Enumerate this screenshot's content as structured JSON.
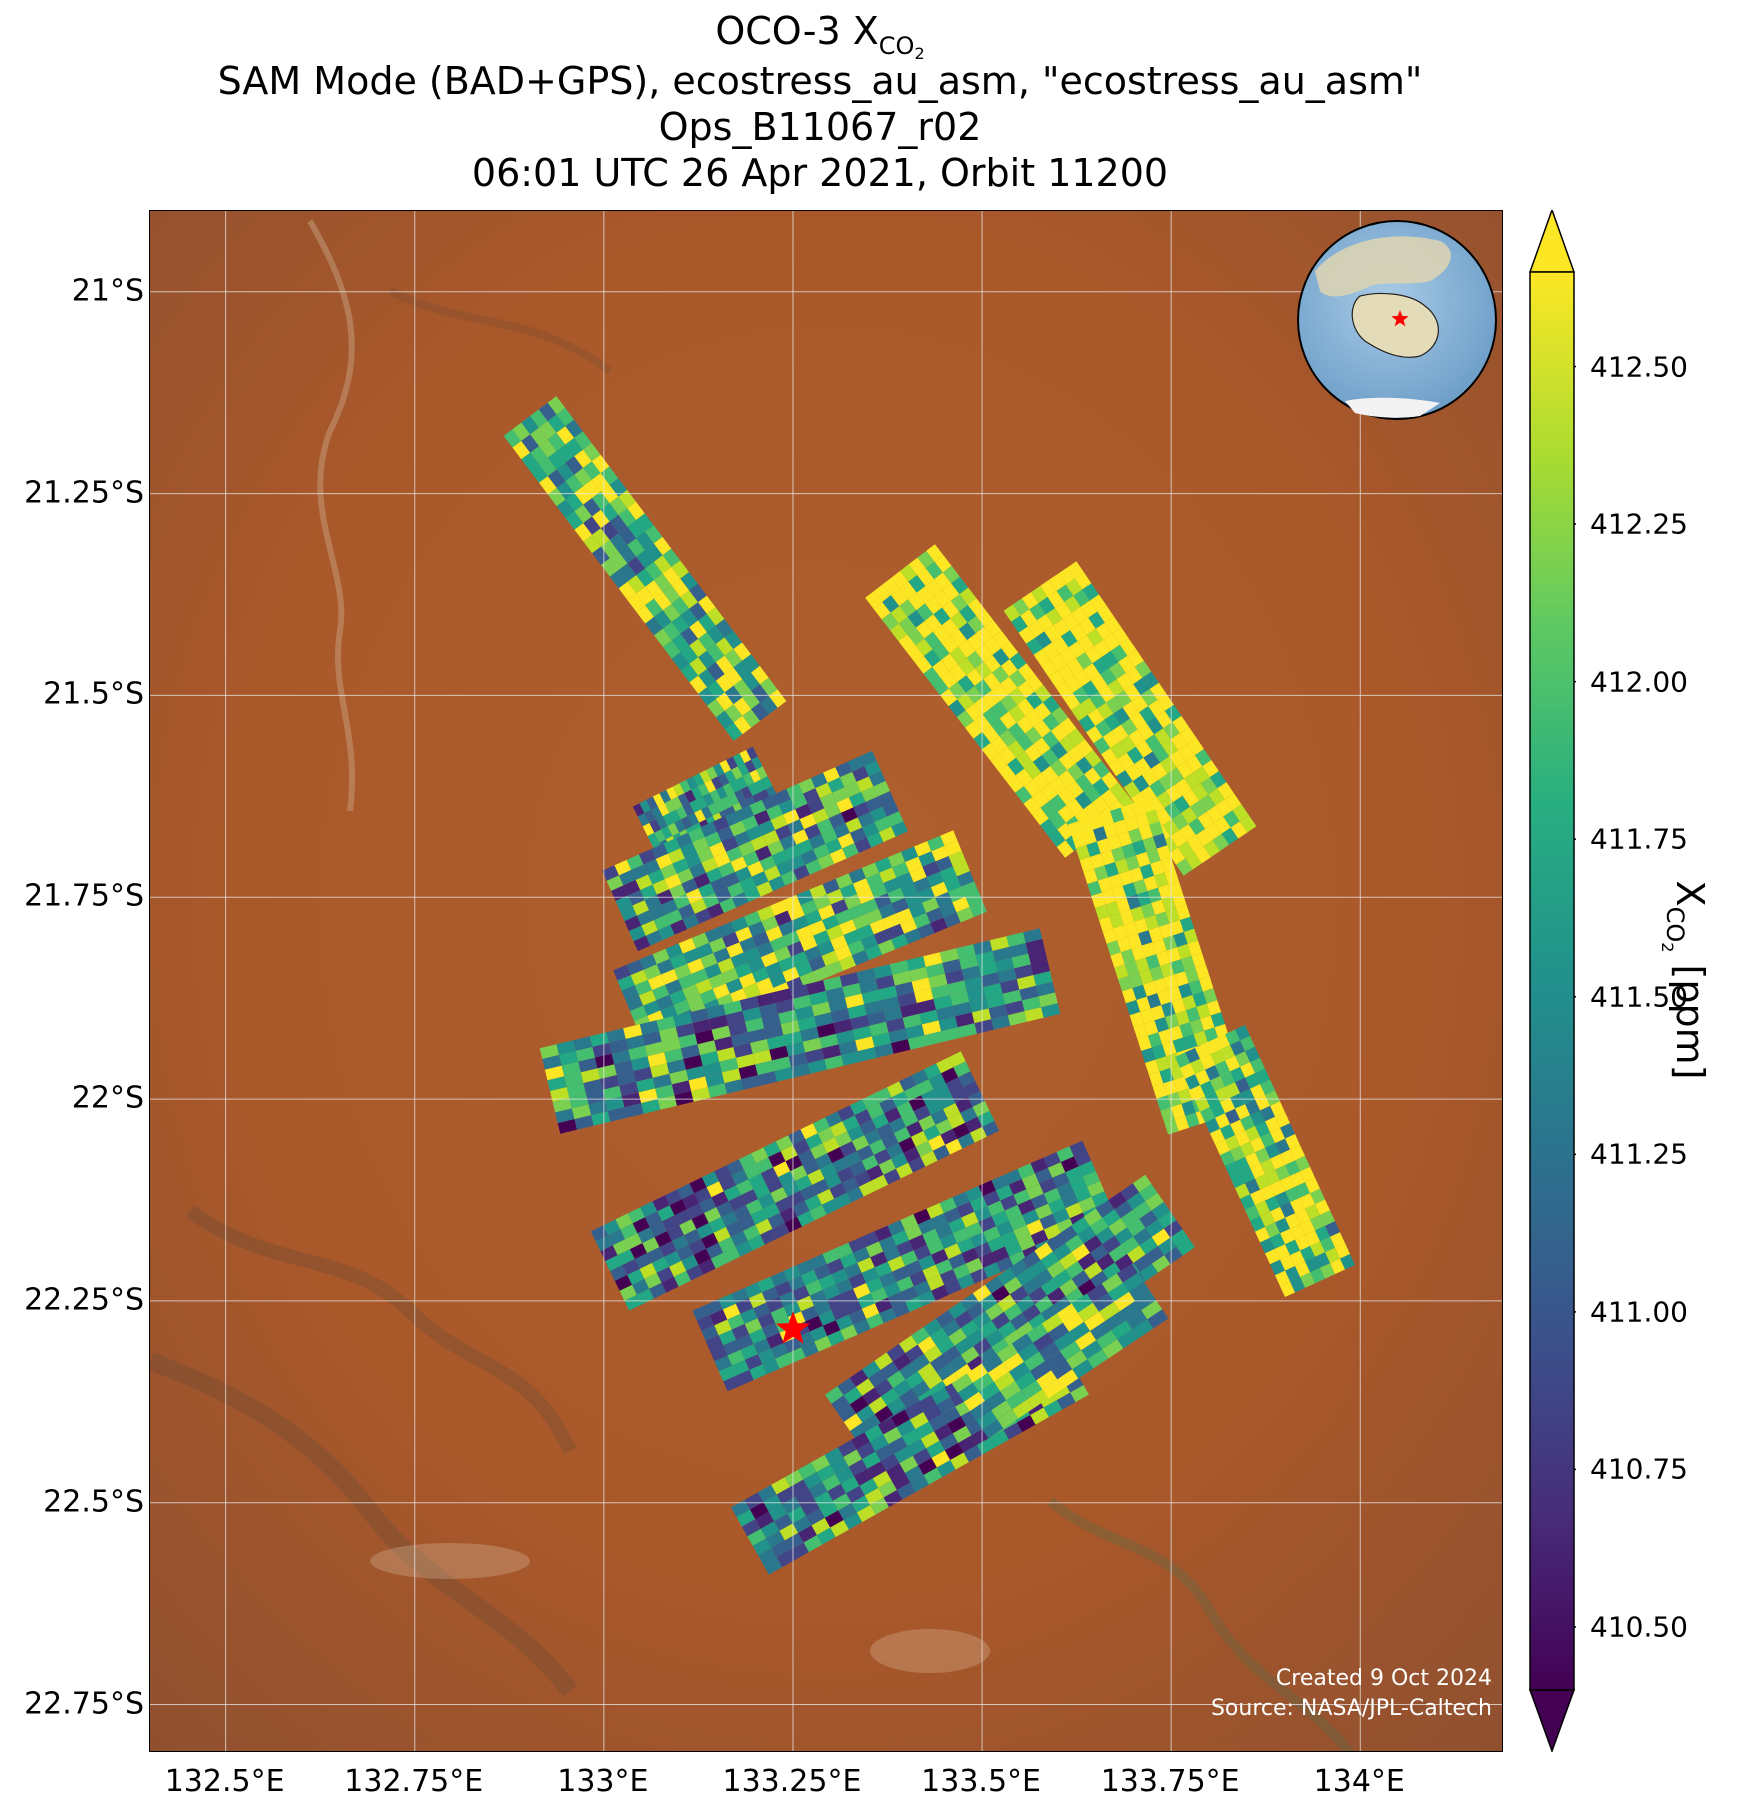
{
  "title": {
    "line1_prefix": "OCO-3 X",
    "line1_subscript": "CO",
    "line1_subsub": "2",
    "line2": "SAM Mode (BAD+GPS), ecostress_au_asm, \"ecostress_au_asm\"",
    "line3": "Ops_B11067_r02",
    "line4": "06:01 UTC 26 Apr 2021, Orbit 11200"
  },
  "map": {
    "lat_ticks": [
      "21°S",
      "21.25°S",
      "21.5°S",
      "21.75°S",
      "22°S",
      "22.25°S",
      "22.5°S",
      "22.75°S"
    ],
    "lat_values": [
      -21.0,
      -21.25,
      -21.5,
      -21.75,
      -22.0,
      -22.25,
      -22.5,
      -22.75
    ],
    "lon_ticks": [
      "132.5°E",
      "132.75°E",
      "133°E",
      "133.25°E",
      "133.5°E",
      "133.75°E",
      "134°E"
    ],
    "lon_values": [
      132.5,
      132.75,
      133.0,
      133.25,
      133.5,
      133.75,
      134.0
    ],
    "lon_range": [
      132.4,
      134.19
    ],
    "lat_range": [
      -22.81,
      -20.9
    ],
    "target_marker": {
      "lon": 133.25,
      "lat": -22.285,
      "color": "#ff0000",
      "symbol": "star"
    },
    "background": "satellite imagery (red desert terrain)",
    "inset_globe": {
      "description": "orthographic globe centered on Australia",
      "marker_color": "#ff0000"
    },
    "credits": [
      "Created 9 Oct 2024",
      "Source: NASA/JPL-Caltech"
    ]
  },
  "colorbar": {
    "label_prefix": "X",
    "label_subscript": "CO",
    "label_subsub": "2",
    "label_suffix": " [ppm]",
    "ticks": [
      "412.50",
      "412.25",
      "412.00",
      "411.75",
      "411.50",
      "411.25",
      "411.00",
      "410.75",
      "410.50"
    ],
    "tick_values": [
      412.5,
      412.25,
      412.0,
      411.75,
      411.5,
      411.25,
      411.0,
      410.75,
      410.5
    ],
    "range": [
      410.4,
      412.65
    ],
    "extend": "both",
    "colormap": "viridis"
  }
}
